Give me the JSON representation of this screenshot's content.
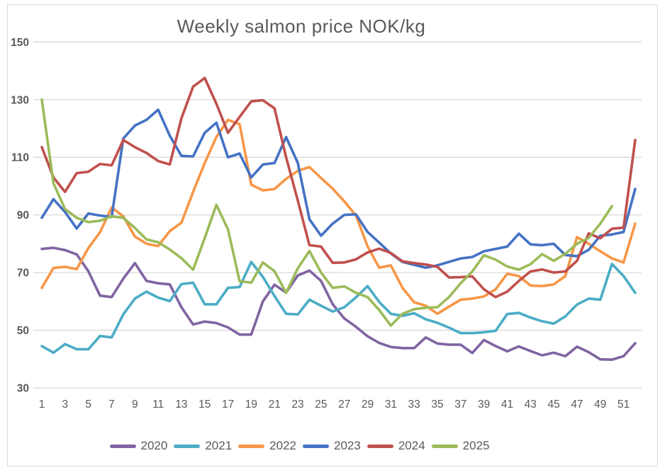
{
  "title": "Weekly salmon price NOK/kg",
  "chart_data": {
    "type": "line",
    "title": "Weekly salmon price NOK/kg",
    "xlabel": "",
    "ylabel": "",
    "x_weeks": [
      1,
      2,
      3,
      4,
      5,
      6,
      7,
      8,
      9,
      10,
      11,
      12,
      13,
      14,
      15,
      16,
      17,
      18,
      19,
      20,
      21,
      22,
      23,
      24,
      25,
      26,
      27,
      28,
      29,
      30,
      31,
      32,
      33,
      34,
      35,
      36,
      37,
      38,
      39,
      40,
      41,
      42,
      43,
      44,
      45,
      46,
      47,
      48,
      49,
      50,
      51,
      52
    ],
    "x_tick_labels": [
      "1",
      "3",
      "5",
      "7",
      "9",
      "11",
      "13",
      "15",
      "17",
      "19",
      "21",
      "23",
      "25",
      "27",
      "29",
      "31",
      "33",
      "35",
      "37",
      "39",
      "41",
      "43",
      "45",
      "47",
      "49",
      "51"
    ],
    "x_tick_weeks": [
      1,
      3,
      5,
      7,
      9,
      11,
      13,
      15,
      17,
      19,
      21,
      23,
      25,
      27,
      29,
      31,
      33,
      35,
      37,
      39,
      41,
      43,
      45,
      47,
      49,
      51
    ],
    "ylim": [
      30,
      150
    ],
    "y_ticks": [
      30,
      50,
      70,
      90,
      110,
      130,
      150
    ],
    "grid": true,
    "legend_position": "bottom",
    "text_color": "#595959",
    "grid_color": "#d9d9d9",
    "series": [
      {
        "name": "2020",
        "color": "#8064A2",
        "values": [
          78.2,
          78.6,
          77.8,
          76.3,
          70.5,
          62,
          61.5,
          67.9,
          73.3,
          67.1,
          66.3,
          65.9,
          58,
          52,
          53,
          52.5,
          51,
          48.5,
          48.5,
          60,
          65.8,
          63.1,
          69,
          70.7,
          67.1,
          59,
          54.1,
          51.2,
          47.9,
          45.6,
          44.2,
          43.8,
          43.8,
          47.5,
          45.4,
          45,
          45,
          42.1,
          46.6,
          44.5,
          42.7,
          44.4,
          42.8,
          41.3,
          42.2,
          41,
          44.3,
          42.4,
          39.9,
          39.8,
          41,
          45.5
        ]
      },
      {
        "name": "2021",
        "color": "#4BACC6",
        "values": [
          44.5,
          42.2,
          45.2,
          43.4,
          43.4,
          48,
          47.5,
          55.5,
          61,
          63.4,
          61.3,
          60.1,
          66,
          66.5,
          59,
          59,
          64.7,
          65,
          73.7,
          68.5,
          61.9,
          55.7,
          55.5,
          60.6,
          58.5,
          56.5,
          58,
          61.4,
          65.3,
          59.8,
          55.7,
          55,
          55.9,
          53.8,
          52.6,
          50.9,
          49,
          49,
          49.3,
          49.8,
          55.6,
          56,
          54.4,
          53.1,
          52.3,
          54.8,
          58.9,
          61,
          60.6,
          73,
          68.8,
          63
        ]
      },
      {
        "name": "2022",
        "color": "#F79646",
        "values": [
          64.7,
          71.6,
          72,
          71.2,
          78.5,
          84,
          92.6,
          89.5,
          82.5,
          80,
          79.2,
          84.4,
          87.3,
          98,
          108,
          117,
          123,
          121.5,
          100.5,
          98.5,
          99,
          102.5,
          105.3,
          106.6,
          102.8,
          99.1,
          94.7,
          89.8,
          79.1,
          71.7,
          72.5,
          64.7,
          59.7,
          58.5,
          55.7,
          58.2,
          60.6,
          61,
          61.7,
          64.2,
          69.6,
          68.8,
          65.5,
          65.3,
          65.9,
          68.8,
          82.3,
          80,
          77.4,
          74.9,
          73.5,
          87
        ]
      },
      {
        "name": "2023",
        "color": "#4472C4",
        "values": [
          89,
          95.5,
          91,
          85.3,
          90.5,
          89.8,
          89.3,
          116.5,
          121,
          123,
          126.5,
          117.5,
          110.5,
          110.3,
          118.5,
          122,
          110,
          111.3,
          103,
          107.5,
          108,
          117,
          108,
          88.5,
          82.8,
          87,
          90,
          90.2,
          84.1,
          80.4,
          76.6,
          73.7,
          72.7,
          71.7,
          72.5,
          73.7,
          74.9,
          75.4,
          77.4,
          78.2,
          79,
          83.5,
          79.8,
          79.5,
          80,
          76.1,
          75.7,
          77.9,
          82.8,
          83.2,
          84.1,
          99
        ]
      },
      {
        "name": "2024",
        "color": "#C0504D",
        "values": [
          113.5,
          103,
          98,
          104.5,
          105,
          107.7,
          107.2,
          116,
          113.5,
          111.5,
          108.7,
          107.5,
          123.5,
          134.5,
          137.5,
          128.6,
          118.5,
          124,
          129.4,
          129.8,
          127,
          110,
          95,
          79.5,
          79,
          73.4,
          73.5,
          74.6,
          77,
          78.3,
          76.8,
          73.9,
          73.3,
          72.8,
          72,
          68.3,
          68.4,
          68.7,
          64.2,
          61.5,
          63.4,
          67.1,
          70.4,
          71.1,
          70,
          70.4,
          74.1,
          83.6,
          81.9,
          85.2,
          85.6,
          116
        ]
      },
      {
        "name": "2025",
        "color": "#9BBB59",
        "values": [
          130,
          101,
          92,
          89,
          87.5,
          88,
          89.5,
          89,
          85.5,
          81.5,
          80.5,
          78,
          75,
          71,
          82,
          93.5,
          85,
          67,
          66.5,
          73.5,
          70.5,
          63,
          71.5,
          77.5,
          70,
          64.7,
          65.2,
          63,
          61.5,
          57,
          51.6,
          55.7,
          57.3,
          57.8,
          58,
          61.5,
          66.3,
          70.4,
          76,
          74.5,
          72.1,
          71,
          72.9,
          76.4,
          74.1,
          76.5,
          80,
          82,
          87,
          93
        ]
      }
    ]
  }
}
